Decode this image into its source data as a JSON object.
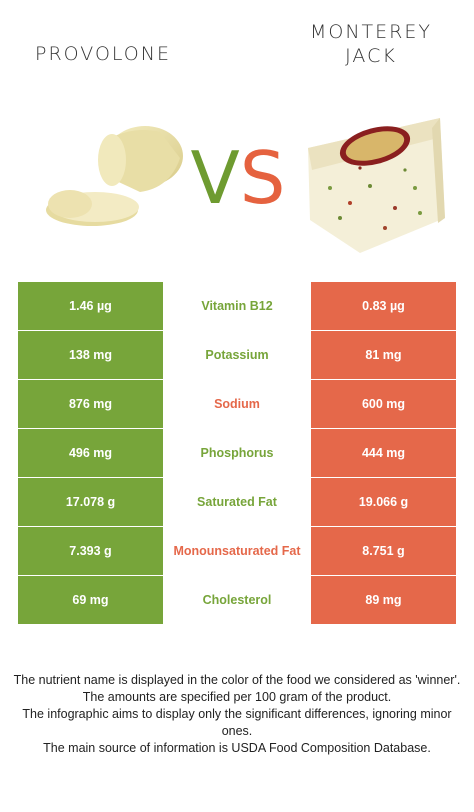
{
  "foods": {
    "left": {
      "name": "PROVOLONE",
      "color": "#77a53a"
    },
    "right": {
      "name_line1": "MONTEREY",
      "name_line2": "JACK",
      "color": "#e5684a"
    }
  },
  "vs": {
    "v": "V",
    "s": "S"
  },
  "rows": [
    {
      "left": "1.46 µg",
      "nutrient": "Vitamin B12",
      "right": "0.83 µg",
      "winner": "left"
    },
    {
      "left": "138 mg",
      "nutrient": "Potassium",
      "right": "81 mg",
      "winner": "left"
    },
    {
      "left": "876 mg",
      "nutrient": "Sodium",
      "right": "600 mg",
      "winner": "right"
    },
    {
      "left": "496 mg",
      "nutrient": "Phosphorus",
      "right": "444 mg",
      "winner": "left"
    },
    {
      "left": "17.078 g",
      "nutrient": "Saturated Fat",
      "right": "19.066 g",
      "winner": "left"
    },
    {
      "left": "7.393 g",
      "nutrient": "Monounsaturated Fat",
      "right": "8.751 g",
      "winner": "right"
    },
    {
      "left": "69 mg",
      "nutrient": "Cholesterol",
      "right": "89 mg",
      "winner": "left"
    }
  ],
  "footnote": {
    "line1": "The nutrient name is displayed in the color of the food we considered as 'winner'.",
    "line2": "The amounts are specified per 100 gram of the product.",
    "line3": "The infographic aims to display only the significant differences, ignoring minor ones.",
    "line4": "The main source of information is USDA Food Composition Database."
  }
}
